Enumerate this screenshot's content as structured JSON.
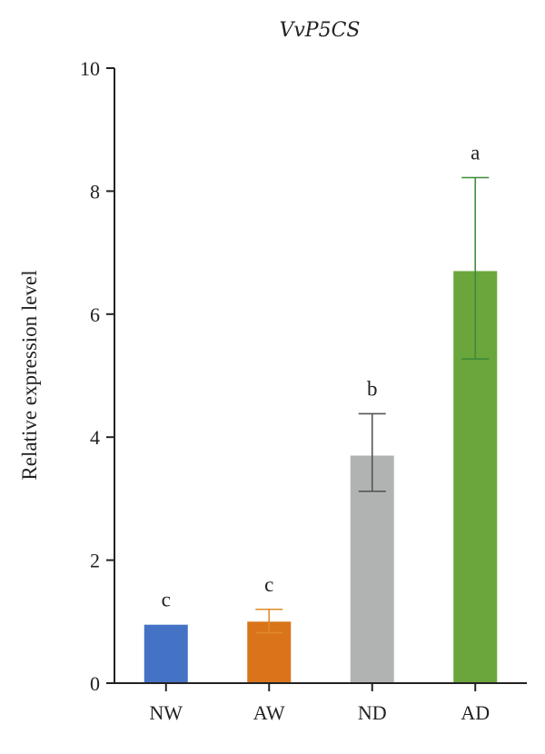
{
  "chart_data": {
    "type": "bar",
    "title": "VvP5CS",
    "xlabel": "",
    "ylabel": "Relative expression level",
    "ylim": [
      0,
      10
    ],
    "yticks": [
      0,
      2,
      4,
      6,
      8,
      10
    ],
    "categories": [
      "NW",
      "AW",
      "ND",
      "AD"
    ],
    "values": [
      0.95,
      1.0,
      3.7,
      6.7
    ],
    "error_low": [
      0.95,
      0.82,
      3.12,
      5.27
    ],
    "error_high": [
      0.95,
      1.2,
      4.38,
      8.22
    ],
    "significance": [
      "c",
      "c",
      "b",
      "a"
    ],
    "colors": [
      "#4472c4",
      "#d9741a",
      "#b1b3b2",
      "#6aa63b"
    ],
    "error_colors": [
      "#4472c4",
      "#e08a2c",
      "#555555",
      "#3f8a3a"
    ],
    "grid": false,
    "legend": "none"
  }
}
